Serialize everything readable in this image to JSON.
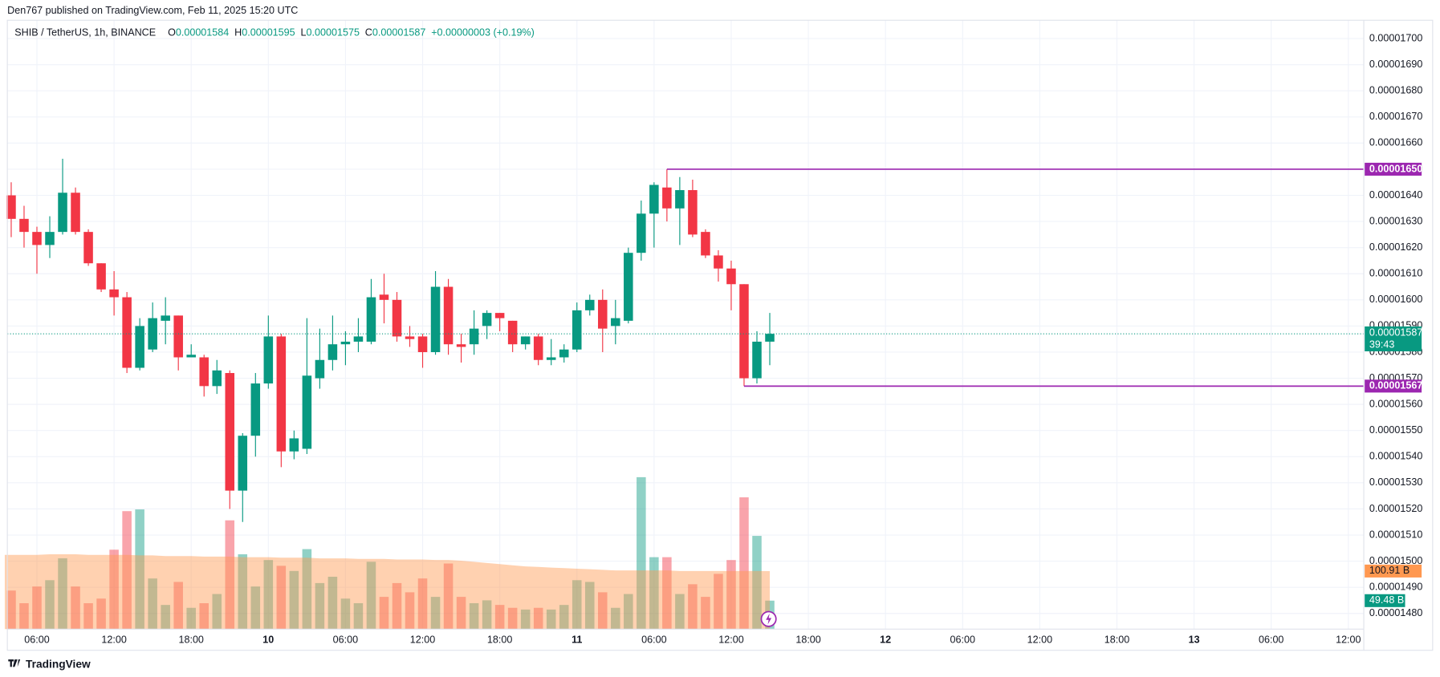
{
  "header": {
    "attribution": "Den767 published on TradingView.com, Feb 11, 2025 15:20 UTC",
    "symbol": "SHIB / TetherUS, 1h, BINANCE",
    "legend": [
      {
        "key": "O",
        "value": "0.00001584"
      },
      {
        "key": "H",
        "value": "0.00001595"
      },
      {
        "key": "L",
        "value": "0.00001575"
      },
      {
        "key": "C",
        "value": "0.00001587"
      }
    ],
    "change": "+0.00000003 (+0.19%)"
  },
  "footer": {
    "logo": "TradingView"
  },
  "chart_data": {
    "type": "candlestick",
    "up_color": "#089981",
    "down_color": "#f23645",
    "grid": true,
    "open": [
      1.64e-05,
      1.631e-05,
      1.626e-05,
      1.621e-05,
      1.626e-05,
      1.641e-05,
      1.626e-05,
      1.614e-05,
      1.604e-05,
      1.601e-05,
      1.574e-05,
      1.581e-05,
      1.592e-05,
      1.594e-05,
      1.578e-05,
      1.578e-05,
      1.567e-05,
      1.572e-05,
      1.527e-05,
      1.548e-05,
      1.568e-05,
      1.586e-05,
      1.542e-05,
      1.543e-05,
      1.57e-05,
      1.577e-05,
      1.583e-05,
      1.584e-05,
      1.584e-05,
      1.602e-05,
      1.6e-05,
      1.586e-05,
      1.586e-05,
      1.58e-05,
      1.605e-05,
      1.583e-05,
      1.583e-05,
      1.59e-05,
      1.595e-05,
      1.592e-05,
      1.583e-05,
      1.586e-05,
      1.577e-05,
      1.578e-05,
      1.581e-05,
      1.596e-05,
      1.6e-05,
      1.59e-05,
      1.592e-05,
      1.618e-05,
      1.633e-05,
      1.643e-05,
      1.635e-05,
      1.642e-05,
      1.626e-05,
      1.617e-05,
      1.612e-05,
      1.606e-05,
      1.57e-05,
      1.584e-05
    ],
    "high": [
      1.645e-05,
      1.636e-05,
      1.628e-05,
      1.632e-05,
      1.654e-05,
      1.643e-05,
      1.627e-05,
      1.614e-05,
      1.611e-05,
      1.603e-05,
      1.593e-05,
      1.599e-05,
      1.601e-05,
      1.594e-05,
      1.583e-05,
      1.579e-05,
      1.577e-05,
      1.573e-05,
      1.549e-05,
      1.572e-05,
      1.594e-05,
      1.587e-05,
      1.55e-05,
      1.593e-05,
      1.589e-05,
      1.594e-05,
      1.588e-05,
      1.593e-05,
      1.608e-05,
      1.61e-05,
      1.603e-05,
      1.59e-05,
      1.587e-05,
      1.611e-05,
      1.608e-05,
      1.587e-05,
      1.596e-05,
      1.596e-05,
      1.595e-05,
      1.592e-05,
      1.586e-05,
      1.587e-05,
      1.585e-05,
      1.583e-05,
      1.599e-05,
      1.602e-05,
      1.604e-05,
      1.6e-05,
      1.62e-05,
      1.638e-05,
      1.645e-05,
      1.65e-05,
      1.647e-05,
      1.646e-05,
      1.627e-05,
      1.619e-05,
      1.615e-05,
      1.606e-05,
      1.588e-05,
      1.595e-05
    ],
    "low": [
      1.624e-05,
      1.62e-05,
      1.61e-05,
      1.616e-05,
      1.625e-05,
      1.625e-05,
      1.613e-05,
      1.603e-05,
      1.594e-05,
      1.572e-05,
      1.573e-05,
      1.58e-05,
      1.583e-05,
      1.573e-05,
      1.578e-05,
      1.563e-05,
      1.564e-05,
      1.52e-05,
      1.515e-05,
      1.54e-05,
      1.566e-05,
      1.536e-05,
      1.539e-05,
      1.541e-05,
      1.566e-05,
      1.573e-05,
      1.575e-05,
      1.58e-05,
      1.583e-05,
      1.591e-05,
      1.584e-05,
      1.582e-05,
      1.574e-05,
      1.579e-05,
      1.579e-05,
      1.576e-05,
      1.579e-05,
      1.585e-05,
      1.588e-05,
      1.58e-05,
      1.581e-05,
      1.575e-05,
      1.575e-05,
      1.576e-05,
      1.58e-05,
      1.594e-05,
      1.58e-05,
      1.583e-05,
      1.591e-05,
      1.615e-05,
      1.62e-05,
      1.63e-05,
      1.621e-05,
      1.624e-05,
      1.616e-05,
      1.607e-05,
      1.596e-05,
      1.567e-05,
      1.568e-05,
      1.575e-05
    ],
    "close": [
      1.631e-05,
      1.626e-05,
      1.621e-05,
      1.626e-05,
      1.641e-05,
      1.626e-05,
      1.614e-05,
      1.604e-05,
      1.601e-05,
      1.574e-05,
      1.59e-05,
      1.593e-05,
      1.594e-05,
      1.578e-05,
      1.579e-05,
      1.567e-05,
      1.573e-05,
      1.527e-05,
      1.548e-05,
      1.568e-05,
      1.586e-05,
      1.542e-05,
      1.547e-05,
      1.571e-05,
      1.577e-05,
      1.583e-05,
      1.584e-05,
      1.586e-05,
      1.601e-05,
      1.6e-05,
      1.586e-05,
      1.585e-05,
      1.58e-05,
      1.605e-05,
      1.583e-05,
      1.582e-05,
      1.589e-05,
      1.595e-05,
      1.593e-05,
      1.583e-05,
      1.586e-05,
      1.577e-05,
      1.578e-05,
      1.581e-05,
      1.596e-05,
      1.6e-05,
      1.589e-05,
      1.593e-05,
      1.618e-05,
      1.633e-05,
      1.644e-05,
      1.635e-05,
      1.642e-05,
      1.625e-05,
      1.617e-05,
      1.612e-05,
      1.606e-05,
      1.57e-05,
      1.584e-05,
      1.587e-05
    ],
    "volume": [
      67,
      45,
      74,
      85,
      123,
      74,
      45,
      53,
      138,
      205,
      208,
      88,
      42,
      82,
      37,
      45,
      61,
      189,
      130,
      74,
      120,
      110,
      101,
      139,
      80,
      91,
      53,
      45,
      117,
      56,
      80,
      64,
      88,
      56,
      114,
      56,
      45,
      50,
      42,
      37,
      34,
      37,
      34,
      42,
      85,
      82,
      64,
      37,
      61,
      264,
      125,
      125,
      61,
      78,
      56,
      96,
      120,
      229,
      162,
      49.48
    ],
    "volume_ma": [
      129,
      129,
      129,
      130,
      130,
      130,
      129,
      129,
      129,
      129,
      128,
      128,
      127,
      127,
      127,
      126,
      126,
      126,
      125,
      125,
      125,
      124,
      124,
      124,
      123,
      123,
      123,
      122,
      122,
      122,
      121,
      121,
      121,
      120,
      120,
      119,
      117,
      115,
      113,
      111,
      109,
      108,
      107,
      106,
      105,
      104,
      103,
      102,
      102,
      102,
      102,
      102,
      101,
      101,
      101,
      101,
      101,
      101,
      101,
      100.91
    ],
    "volume_ma_color": "#ff9850",
    "volume_ma_label": "100.91 B",
    "last_volume_label": "49.48 B",
    "volume_ylim": [
      0,
      1058
    ],
    "last_price_label": "0.00001587",
    "countdown": "39:43",
    "levels": [
      {
        "value": 1.65e-05,
        "label": "0.00001650",
        "color": "#9c27b0",
        "anchor": "high"
      },
      {
        "value": 1.567e-05,
        "label": "0.00001567",
        "color": "#9c27b0",
        "anchor": "low"
      }
    ],
    "xlim": [
      -0.3,
      105.2
    ],
    "xticks": [
      {
        "value": 2,
        "label": "06:00"
      },
      {
        "value": 8,
        "label": "12:00"
      },
      {
        "value": 14,
        "label": "18:00"
      },
      {
        "value": 20,
        "label": "10"
      },
      {
        "value": 26,
        "label": "06:00"
      },
      {
        "value": 32,
        "label": "12:00"
      },
      {
        "value": 38,
        "label": "18:00"
      },
      {
        "value": 44,
        "label": "11"
      },
      {
        "value": 50,
        "label": "06:00"
      },
      {
        "value": 56,
        "label": "12:00"
      },
      {
        "value": 62,
        "label": "18:00"
      },
      {
        "value": 68,
        "label": "12"
      },
      {
        "value": 74,
        "label": "06:00"
      },
      {
        "value": 80,
        "label": "12:00"
      },
      {
        "value": 86,
        "label": "18:00"
      },
      {
        "value": 92,
        "label": "13"
      },
      {
        "value": 98,
        "label": "06:00"
      },
      {
        "value": 104,
        "label": "12:00"
      }
    ],
    "ylim": [
      1.474e-05,
      1.707e-05
    ],
    "yticks": [
      {
        "value": 1.7e-05,
        "label": "0.00001700"
      },
      {
        "value": 1.69e-05,
        "label": "0.00001690"
      },
      {
        "value": 1.68e-05,
        "label": "0.00001680"
      },
      {
        "value": 1.67e-05,
        "label": "0.00001670"
      },
      {
        "value": 1.66e-05,
        "label": "0.00001660"
      },
      {
        "value": 1.65e-05,
        "label": "0.00001650"
      },
      {
        "value": 1.64e-05,
        "label": "0.00001640"
      },
      {
        "value": 1.63e-05,
        "label": "0.00001630"
      },
      {
        "value": 1.62e-05,
        "label": "0.00001620"
      },
      {
        "value": 1.61e-05,
        "label": "0.00001610"
      },
      {
        "value": 1.6e-05,
        "label": "0.00001600"
      },
      {
        "value": 1.59e-05,
        "label": "0.00001590"
      },
      {
        "value": 1.58e-05,
        "label": "0.00001580"
      },
      {
        "value": 1.57e-05,
        "label": "0.00001570"
      },
      {
        "value": 1.56e-05,
        "label": "0.00001560"
      },
      {
        "value": 1.55e-05,
        "label": "0.00001550"
      },
      {
        "value": 1.54e-05,
        "label": "0.00001540"
      },
      {
        "value": 1.53e-05,
        "label": "0.00001530"
      },
      {
        "value": 1.52e-05,
        "label": "0.00001520"
      },
      {
        "value": 1.51e-05,
        "label": "0.00001510"
      },
      {
        "value": 1.5e-05,
        "label": "0.00001500"
      },
      {
        "value": 1.49e-05,
        "label": "0.00001490"
      },
      {
        "value": 1.48e-05,
        "label": "0.00001480"
      }
    ]
  }
}
